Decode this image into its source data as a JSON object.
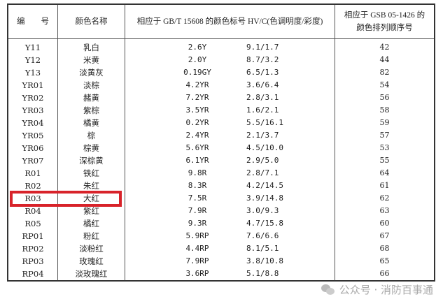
{
  "header": {
    "col1": "编　　号",
    "col2": "颜色名称",
    "col3": "相应于 GB/T 15608 的颜色标号 HV/C(色调明度/彩度)",
    "col4_line1": "相应于 GSB 05-1426 的",
    "col4_line2": "颜色排列顺序号"
  },
  "rows": [
    {
      "code": "Y11",
      "name": "乳白",
      "hue": "2.6Y",
      "vc": "9.1/1.7",
      "seq": "42"
    },
    {
      "code": "Y12",
      "name": "米黄",
      "hue": "2.0Y",
      "vc": "8.7/3.2",
      "seq": "44"
    },
    {
      "code": "Y13",
      "name": "淡黄灰",
      "hue": "0.19GY",
      "vc": "6.5/1.3",
      "seq": "82"
    },
    {
      "code": "YR01",
      "name": "淡棕",
      "hue": "4.2YR",
      "vc": "3.6/6.4",
      "seq": "54"
    },
    {
      "code": "YR02",
      "name": "赭黄",
      "hue": "7.2YR",
      "vc": "2.8/3.1",
      "seq": "56"
    },
    {
      "code": "YR03",
      "name": "紫棕",
      "hue": "3.5YR",
      "vc": "1.6/2.1",
      "seq": "58"
    },
    {
      "code": "YR04",
      "name": "橘黄",
      "hue": "0.2YR",
      "vc": "5.5/16.1",
      "seq": "59"
    },
    {
      "code": "YR05",
      "name": "棕",
      "hue": "2.4YR",
      "vc": "2.1/3.7",
      "seq": "57"
    },
    {
      "code": "YR06",
      "name": "棕黄",
      "hue": "5.6YR",
      "vc": "4.5/10.0",
      "seq": "53"
    },
    {
      "code": "YR07",
      "name": "深棕黄",
      "hue": "6.1YR",
      "vc": "2.9/5.0",
      "seq": "55"
    },
    {
      "code": "R01",
      "name": "铁红",
      "hue": "9.8R",
      "vc": "2.8/7.1",
      "seq": "64"
    },
    {
      "code": "R02",
      "name": "朱红",
      "hue": "8.3R",
      "vc": "4.2/14.5",
      "seq": "61"
    },
    {
      "code": "R03",
      "name": "大红",
      "hue": "7.5R",
      "vc": "3.9/14.8",
      "seq": "62"
    },
    {
      "code": "R04",
      "name": "紫红",
      "hue": "7.9R",
      "vc": "3.0/9.3",
      "seq": "63"
    },
    {
      "code": "R05",
      "name": "橘红",
      "hue": "9.3R",
      "vc": "4.7/15.8",
      "seq": "60"
    },
    {
      "code": "RP01",
      "name": "粉红",
      "hue": "5.9RP",
      "vc": "7.6/6.6",
      "seq": "67"
    },
    {
      "code": "RP02",
      "name": "淡粉红",
      "hue": "4.4RP",
      "vc": "8.1/5.1",
      "seq": "68"
    },
    {
      "code": "RP03",
      "name": "玫瑰红",
      "hue": "7.9RP",
      "vc": "3.8/10.8",
      "seq": "65"
    },
    {
      "code": "RP04",
      "name": "淡玫瑰红",
      "hue": "3.6RP",
      "vc": "5.1/8.8",
      "seq": "66"
    }
  ],
  "highlight": {
    "row_code": "R03",
    "color": "#d8232a"
  },
  "watermark": {
    "icon": "wechat-icon",
    "text": "公众号 · 消防百事通"
  }
}
